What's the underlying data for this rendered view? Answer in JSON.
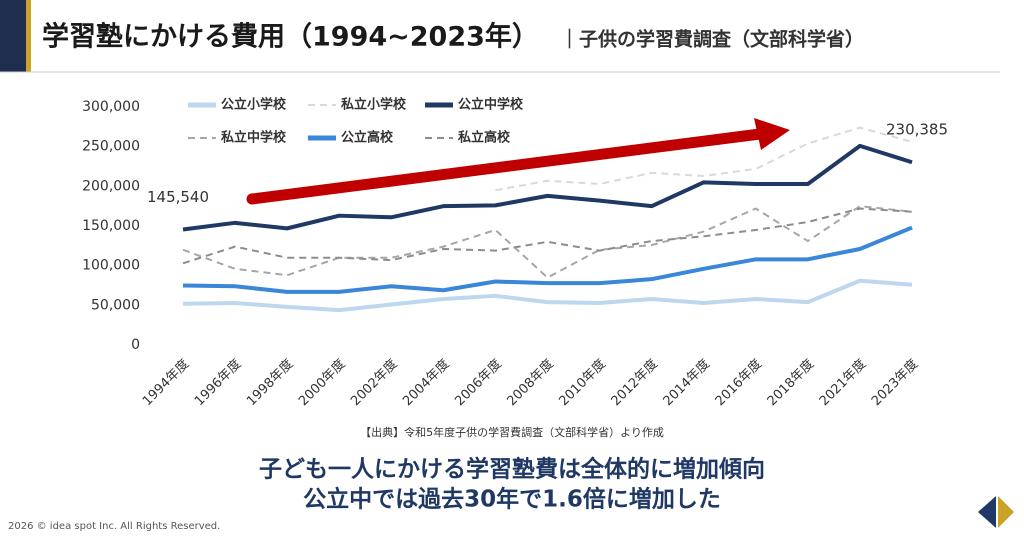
{
  "header": {
    "title": "学習塾にかける費用（1994~2023年）",
    "subtitle": "｜子供の学習費調査（文部科学省）"
  },
  "chart_data": {
    "type": "line",
    "categories": [
      "1994年度",
      "1996年度",
      "1998年度",
      "2000年度",
      "2002年度",
      "2004年度",
      "2006年度",
      "2008年度",
      "2010年度",
      "2012年度",
      "2014年度",
      "2016年度",
      "2018年度",
      "2021年度",
      "2023年度"
    ],
    "ylim": [
      0,
      300000
    ],
    "yticks": [
      0,
      {
        "value": 50000,
        "label": "50,000"
      },
      {
        "value": 100000,
        "label": "100,000"
      },
      {
        "value": 150000,
        "label": "150,000"
      },
      {
        "value": 200000,
        "label": "200,000"
      },
      {
        "value": 250000,
        "label": "250,000"
      },
      {
        "value": 300000,
        "label": "300,000"
      }
    ],
    "grid": false,
    "series": [
      {
        "name": "公立小学校",
        "color": "#bdd7ee",
        "dashed": false,
        "values": [
          52000,
          53000,
          48000,
          44000,
          51000,
          58000,
          62000,
          54000,
          53000,
          58000,
          53000,
          58000,
          54000,
          81000,
          76000
        ]
      },
      {
        "name": "私立小学校",
        "color": "#d9d9d9",
        "dashed": true,
        "values": [
          null,
          null,
          null,
          null,
          null,
          null,
          195000,
          207000,
          203000,
          217000,
          213000,
          222000,
          254000,
          274000,
          256000
        ]
      },
      {
        "name": "公立中学校",
        "color": "#1f3864",
        "dashed": false,
        "values": [
          145540,
          154000,
          147000,
          163000,
          161000,
          175000,
          176000,
          188000,
          182000,
          175000,
          205000,
          203000,
          203000,
          251000,
          230385
        ],
        "value_labels": [
          "145,540",
          null,
          null,
          null,
          null,
          null,
          null,
          null,
          null,
          null,
          null,
          null,
          null,
          null,
          "230,385"
        ]
      },
      {
        "name": "私立中学校",
        "color": "#a6a6a6",
        "dashed": true,
        "values": [
          120000,
          96000,
          88000,
          110000,
          110000,
          124000,
          145000,
          85000,
          120000,
          126000,
          143000,
          172000,
          131000,
          175000,
          168000
        ]
      },
      {
        "name": "公立高校",
        "color": "#3a86d9",
        "dashed": false,
        "values": [
          75000,
          74000,
          67000,
          67000,
          74000,
          69000,
          80000,
          78000,
          78000,
          83000,
          96000,
          108000,
          108000,
          121000,
          148000
        ]
      },
      {
        "name": "私立高校",
        "color": "#8c8c8c",
        "dashed": true,
        "values": [
          103000,
          124000,
          110000,
          110000,
          107000,
          121000,
          119000,
          130000,
          119000,
          131000,
          137000,
          145000,
          155000,
          172000,
          168000
        ]
      }
    ]
  },
  "source": "【出典】令和5年度子供の学習費調査（文部科学省）より作成",
  "message": [
    "子ども一人にかける学習塾費は全体的に増加傾向",
    "公立中では過去30年で1.6倍に増加した"
  ],
  "footer": "2026 © idea spot Inc. All Rights Reserved."
}
